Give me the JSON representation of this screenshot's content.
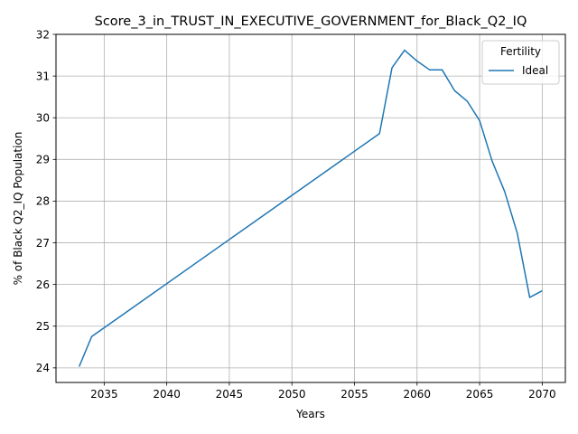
{
  "chart_data": {
    "type": "line",
    "title": "Score_3_in_TRUST_IN_EXECUTIVE_GOVERNMENT_for_Black_Q2_IQ",
    "xlabel": "Years",
    "ylabel": "% of Black Q2_IQ Population",
    "xlim": [
      2031.15,
      2071.85
    ],
    "ylim": [
      23.65,
      32.0
    ],
    "xticks": [
      2035,
      2040,
      2045,
      2050,
      2055,
      2060,
      2065,
      2070
    ],
    "yticks": [
      24,
      25,
      26,
      27,
      28,
      29,
      30,
      31,
      32
    ],
    "grid": true,
    "legend": {
      "title": "Fertility",
      "placement": "top-right"
    },
    "series": [
      {
        "name": "Ideal",
        "color": "#1f77b4",
        "x": [
          2033,
          2034,
          2057,
          2058,
          2059,
          2060,
          2061,
          2062,
          2063,
          2064,
          2065,
          2066,
          2067,
          2068,
          2069,
          2070
        ],
        "y": [
          24.03,
          24.75,
          29.62,
          31.2,
          31.62,
          31.36,
          31.15,
          31.15,
          30.65,
          30.4,
          29.93,
          28.96,
          28.23,
          27.24,
          25.69,
          25.85
        ]
      }
    ]
  }
}
